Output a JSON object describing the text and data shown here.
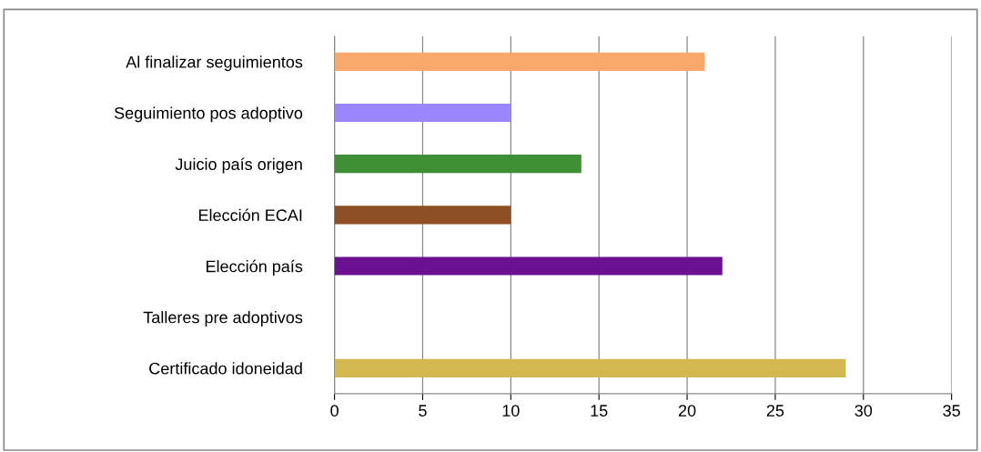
{
  "chart_data": {
    "type": "bar",
    "orientation": "horizontal",
    "categories": [
      "Al finalizar seguimientos",
      "Seguimiento pos adoptivo",
      "Juicio país origen",
      "Elección ECAI",
      "Elección país",
      "Talleres pre adoptivos",
      "Certificado idoneidad"
    ],
    "values": [
      21,
      10,
      14,
      10,
      22,
      0,
      29
    ],
    "colors": [
      "#f9a86b",
      "#9b86ff",
      "#3f8f35",
      "#8e4f24",
      "#6a1090",
      "#999999",
      "#d2b84e"
    ],
    "xlim": [
      0,
      35
    ],
    "xticks": [
      0,
      5,
      10,
      15,
      20,
      25,
      30,
      35
    ],
    "grid": "x"
  }
}
